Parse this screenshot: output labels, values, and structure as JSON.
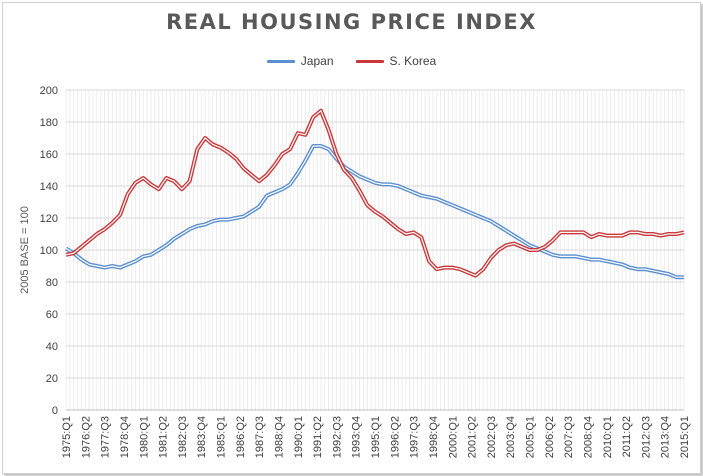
{
  "chart_data": {
    "type": "line",
    "title": "REAL HOUSING PRICE INDEX",
    "ylabel": "2005 BASE = 100",
    "xlabel": "",
    "ylim": [
      0,
      200
    ],
    "yticks": [
      0,
      20,
      40,
      60,
      80,
      100,
      120,
      140,
      160,
      180,
      200
    ],
    "grid": true,
    "legend_position": "top-center",
    "x_start": "1975:Q1",
    "x_end": "2015:Q1",
    "x_tick_labels": [
      "1975:Q1",
      "1976:Q2",
      "1977:Q3",
      "1978:Q4",
      "1980:Q1",
      "1981:Q2",
      "1982:Q3",
      "1983:Q4",
      "1985:Q1",
      "1986:Q2",
      "1987:Q3",
      "1988:Q4",
      "1990:Q1",
      "1991:Q2",
      "1992:Q3",
      "1993:Q4",
      "1995:Q1",
      "1996:Q2",
      "1997:Q3",
      "1998:Q4",
      "2000:Q1",
      "2001:Q2",
      "2002:Q3",
      "2003:Q4",
      "2005:Q1",
      "2006:Q2",
      "2007:Q3",
      "2008:Q4",
      "2010:Q1",
      "2011:Q2",
      "2012:Q3",
      "2013:Q4",
      "2015:Q1"
    ],
    "series": [
      {
        "name": "Japan",
        "color": "#5b8fd1",
        "points": [
          [
            "1975:Q1",
            101
          ],
          [
            "1975:Q3",
            98
          ],
          [
            "1976:Q1",
            94
          ],
          [
            "1976:Q3",
            91
          ],
          [
            "1977:Q1",
            90
          ],
          [
            "1977:Q3",
            89
          ],
          [
            "1978:Q1",
            90
          ],
          [
            "1978:Q3",
            89
          ],
          [
            "1979:Q1",
            91
          ],
          [
            "1979:Q3",
            93
          ],
          [
            "1980:Q1",
            96
          ],
          [
            "1980:Q3",
            97
          ],
          [
            "1981:Q1",
            100
          ],
          [
            "1981:Q3",
            103
          ],
          [
            "1982:Q1",
            107
          ],
          [
            "1982:Q3",
            110
          ],
          [
            "1983:Q1",
            113
          ],
          [
            "1983:Q3",
            115
          ],
          [
            "1984:Q1",
            116
          ],
          [
            "1984:Q3",
            118
          ],
          [
            "1985:Q1",
            119
          ],
          [
            "1985:Q3",
            119
          ],
          [
            "1986:Q1",
            120
          ],
          [
            "1986:Q3",
            121
          ],
          [
            "1987:Q1",
            124
          ],
          [
            "1987:Q3",
            127
          ],
          [
            "1988:Q1",
            134
          ],
          [
            "1988:Q3",
            136
          ],
          [
            "1989:Q1",
            138
          ],
          [
            "1989:Q3",
            141
          ],
          [
            "1990:Q1",
            148
          ],
          [
            "1990:Q3",
            156
          ],
          [
            "1991:Q1",
            165
          ],
          [
            "1991:Q3",
            165
          ],
          [
            "1992:Q1",
            163
          ],
          [
            "1992:Q3",
            157
          ],
          [
            "1993:Q1",
            152
          ],
          [
            "1993:Q3",
            149
          ],
          [
            "1994:Q1",
            146
          ],
          [
            "1994:Q3",
            144
          ],
          [
            "1995:Q1",
            142
          ],
          [
            "1995:Q3",
            141
          ],
          [
            "1996:Q1",
            141
          ],
          [
            "1996:Q3",
            140
          ],
          [
            "1997:Q1",
            138
          ],
          [
            "1997:Q3",
            136
          ],
          [
            "1998:Q1",
            134
          ],
          [
            "1998:Q3",
            133
          ],
          [
            "1999:Q1",
            132
          ],
          [
            "1999:Q3",
            130
          ],
          [
            "2000:Q1",
            128
          ],
          [
            "2000:Q3",
            126
          ],
          [
            "2001:Q1",
            124
          ],
          [
            "2001:Q3",
            122
          ],
          [
            "2002:Q1",
            120
          ],
          [
            "2002:Q3",
            118
          ],
          [
            "2003:Q1",
            115
          ],
          [
            "2003:Q3",
            112
          ],
          [
            "2004:Q1",
            109
          ],
          [
            "2004:Q3",
            106
          ],
          [
            "2005:Q1",
            103
          ],
          [
            "2005:Q3",
            101
          ],
          [
            "2006:Q1",
            99
          ],
          [
            "2006:Q3",
            97
          ],
          [
            "2007:Q1",
            96
          ],
          [
            "2007:Q3",
            96
          ],
          [
            "2008:Q1",
            96
          ],
          [
            "2008:Q3",
            95
          ],
          [
            "2009:Q1",
            94
          ],
          [
            "2009:Q3",
            94
          ],
          [
            "2010:Q1",
            93
          ],
          [
            "2010:Q3",
            92
          ],
          [
            "2011:Q1",
            91
          ],
          [
            "2011:Q3",
            89
          ],
          [
            "2012:Q1",
            88
          ],
          [
            "2012:Q3",
            88
          ],
          [
            "2013:Q1",
            87
          ],
          [
            "2013:Q3",
            86
          ],
          [
            "2014:Q1",
            85
          ],
          [
            "2014:Q3",
            83
          ],
          [
            "2015:Q1",
            83
          ]
        ]
      },
      {
        "name": "S. Korea",
        "color": "#c9393b",
        "points": [
          [
            "1975:Q1",
            97
          ],
          [
            "1975:Q3",
            98
          ],
          [
            "1976:Q1",
            102
          ],
          [
            "1976:Q3",
            106
          ],
          [
            "1977:Q1",
            110
          ],
          [
            "1977:Q3",
            113
          ],
          [
            "1978:Q1",
            117
          ],
          [
            "1978:Q3",
            122
          ],
          [
            "1979:Q1",
            135
          ],
          [
            "1979:Q3",
            142
          ],
          [
            "1980:Q1",
            145
          ],
          [
            "1980:Q3",
            141
          ],
          [
            "1981:Q1",
            138
          ],
          [
            "1981:Q3",
            145
          ],
          [
            "1982:Q1",
            143
          ],
          [
            "1982:Q3",
            138
          ],
          [
            "1983:Q1",
            143
          ],
          [
            "1983:Q3",
            163
          ],
          [
            "1984:Q1",
            170
          ],
          [
            "1984:Q3",
            166
          ],
          [
            "1985:Q1",
            164
          ],
          [
            "1985:Q3",
            161
          ],
          [
            "1986:Q1",
            157
          ],
          [
            "1986:Q3",
            151
          ],
          [
            "1987:Q1",
            147
          ],
          [
            "1987:Q3",
            143
          ],
          [
            "1988:Q1",
            147
          ],
          [
            "1988:Q3",
            153
          ],
          [
            "1989:Q1",
            160
          ],
          [
            "1989:Q3",
            163
          ],
          [
            "1990:Q1",
            173
          ],
          [
            "1990:Q3",
            172
          ],
          [
            "1991:Q1",
            183
          ],
          [
            "1991:Q3",
            187
          ],
          [
            "1992:Q1",
            175
          ],
          [
            "1992:Q3",
            160
          ],
          [
            "1993:Q1",
            150
          ],
          [
            "1993:Q3",
            145
          ],
          [
            "1994:Q1",
            137
          ],
          [
            "1994:Q3",
            128
          ],
          [
            "1995:Q1",
            124
          ],
          [
            "1995:Q3",
            121
          ],
          [
            "1996:Q1",
            117
          ],
          [
            "1996:Q3",
            113
          ],
          [
            "1997:Q1",
            110
          ],
          [
            "1997:Q3",
            111
          ],
          [
            "1998:Q1",
            108
          ],
          [
            "1998:Q3",
            93
          ],
          [
            "1999:Q1",
            88
          ],
          [
            "1999:Q3",
            89
          ],
          [
            "2000:Q1",
            89
          ],
          [
            "2000:Q3",
            88
          ],
          [
            "2001:Q1",
            86
          ],
          [
            "2001:Q3",
            84
          ],
          [
            "2002:Q1",
            88
          ],
          [
            "2002:Q3",
            95
          ],
          [
            "2003:Q1",
            100
          ],
          [
            "2003:Q3",
            103
          ],
          [
            "2004:Q1",
            104
          ],
          [
            "2004:Q3",
            102
          ],
          [
            "2005:Q1",
            100
          ],
          [
            "2005:Q3",
            100
          ],
          [
            "2006:Q1",
            102
          ],
          [
            "2006:Q3",
            106
          ],
          [
            "2007:Q1",
            111
          ],
          [
            "2007:Q3",
            111
          ],
          [
            "2008:Q1",
            111
          ],
          [
            "2008:Q3",
            111
          ],
          [
            "2009:Q1",
            108
          ],
          [
            "2009:Q3",
            110
          ],
          [
            "2010:Q1",
            109
          ],
          [
            "2010:Q3",
            109
          ],
          [
            "2011:Q1",
            109
          ],
          [
            "2011:Q3",
            111
          ],
          [
            "2012:Q1",
            111
          ],
          [
            "2012:Q3",
            110
          ],
          [
            "2013:Q1",
            110
          ],
          [
            "2013:Q3",
            109
          ],
          [
            "2014:Q1",
            110
          ],
          [
            "2014:Q3",
            110
          ],
          [
            "2015:Q1",
            111
          ]
        ]
      }
    ]
  }
}
